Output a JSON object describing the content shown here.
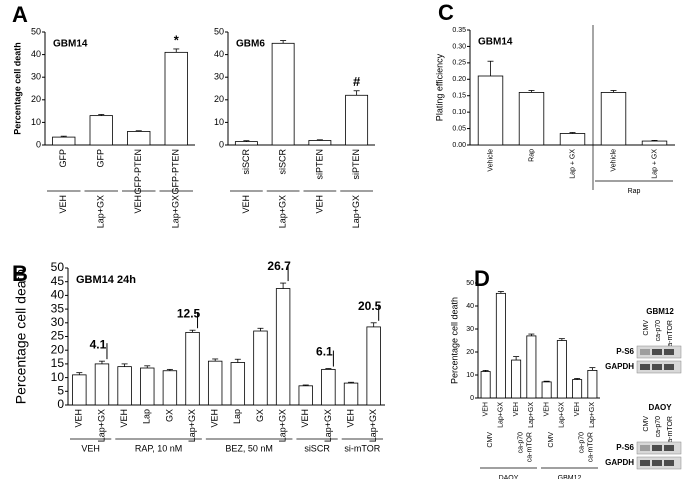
{
  "chart_data": [
    {
      "type": "bar",
      "panel": "A",
      "title": "GBM14",
      "ylabel": "Percentage cell death",
      "color": "#ffffff",
      "categories": [
        "GFP",
        "GFP",
        "GFP-PTEN",
        "GFP-PTEN"
      ],
      "values": [
        3.5,
        13,
        6,
        41
      ],
      "errors": [
        0.4,
        0.5,
        0.3,
        1.5
      ],
      "bar_labels": [
        null,
        null,
        null,
        "*"
      ],
      "groups": [
        [
          "VEH",
          "Lap+GX",
          "VEH",
          "Lap+GX"
        ]
      ],
      "ylim": [
        0,
        50
      ],
      "yticks": [
        0,
        10,
        20,
        30,
        40,
        50
      ]
    },
    {
      "type": "bar",
      "title": "GBM6",
      "color": "#ffffff",
      "categories": [
        "siSCR",
        "siSCR",
        "siPTEN",
        "siPTEN"
      ],
      "values": [
        1.5,
        45,
        2,
        22
      ],
      "errors": [
        0.4,
        1.2,
        0.3,
        2
      ],
      "bar_labels": [
        null,
        null,
        null,
        "#"
      ],
      "groups": [
        [
          "VEH",
          "Lap+GX",
          "VEH",
          "Lap+GX"
        ]
      ],
      "ylim": [
        0,
        50
      ],
      "yticks": [
        0,
        10,
        20,
        30,
        40,
        50
      ]
    },
    {
      "type": "bar",
      "panel": "C",
      "title": "GBM14",
      "ylabel": "Plating efficiency",
      "color": "#ffffff",
      "categories": [
        "Vehicle",
        "Rap",
        "Lap + GX",
        "Vehicle",
        "Lap + GX"
      ],
      "values": [
        0.21,
        0.16,
        0.035,
        0.16,
        0.012
      ],
      "errors": [
        0.045,
        0.006,
        0.003,
        0.006,
        0.002
      ],
      "groups": [
        [
          null,
          null,
          null,
          "Rap",
          "Rap"
        ]
      ],
      "ylim": [
        0,
        0.35
      ],
      "yticks": [
        {
          "value": 0,
          "label": "0.00"
        },
        {
          "value": 0.05,
          "label": "0.05"
        },
        {
          "value": 0.1,
          "label": "0.10"
        },
        {
          "value": 0.15,
          "label": "0.15"
        },
        {
          "value": 0.2,
          "label": "0.20"
        },
        {
          "value": 0.25,
          "label": "0.25"
        },
        {
          "value": 0.3,
          "label": "0.30"
        },
        {
          "value": 0.35,
          "label": "0.35"
        }
      ]
    },
    {
      "type": "bar",
      "panel": "B",
      "title": "GBM14 24h",
      "ylabel": "Percentage cell death",
      "color": "#ffffff",
      "categories": [
        "VEH",
        "Lap+GX",
        "VEH",
        "Lap",
        "GX",
        "Lap+GX",
        "VEH",
        "Lap",
        "GX",
        "Lap+GX",
        "VEH",
        "Lap+GX",
        "VEH",
        "Lap+GX"
      ],
      "values": [
        11,
        15,
        14,
        13.5,
        12.5,
        26.5,
        16,
        15.5,
        27,
        42.5,
        7,
        13,
        8,
        28.5
      ],
      "errors": [
        0.8,
        1,
        1,
        0.8,
        0.5,
        0.8,
        0.8,
        1.2,
        1,
        2,
        0.3,
        0.3,
        0.3,
        1.5
      ],
      "bar_labels": [
        null,
        "4.1",
        null,
        null,
        null,
        "12.5",
        null,
        null,
        null,
        "26.7",
        null,
        "6.1",
        null,
        "20.5"
      ],
      "groups": [
        [
          "VEH",
          "VEH",
          "RAP, 10 nM",
          "RAP, 10 nM",
          "RAP, 10 nM",
          "RAP, 10 nM",
          "BEZ, 50 nM",
          "BEZ, 50 nM",
          "BEZ, 50 nM",
          "BEZ, 50 nM",
          "siSCR",
          "siSCR",
          "si-mTOR",
          "si-mTOR"
        ]
      ],
      "ylim": [
        0,
        50
      ],
      "yticks": [
        0,
        5,
        10,
        15,
        20,
        25,
        30,
        35,
        40,
        45,
        50
      ]
    },
    {
      "type": "bar",
      "panel": "D",
      "ylabel": "Percentage cell death",
      "color": "#ffffff",
      "categories": [
        "VEH",
        "Lap+GX",
        "VEH",
        "Lap+GX",
        "VEH",
        "Lap+GX",
        "VEH",
        "Lap+GX"
      ],
      "values": [
        11.5,
        45.5,
        16.5,
        27,
        7,
        25,
        8,
        12
      ],
      "errors": [
        0.5,
        0.8,
        1.5,
        0.8,
        0.3,
        0.8,
        0.5,
        1.2
      ],
      "groups": [
        [
          "CMV",
          "CMV",
          "ca-p70",
          "ca-p70",
          "CMV",
          "CMV",
          "ca-p70",
          "ca-p70"
        ],
        [
          null,
          null,
          "ca-mTOR",
          "ca-mTOR",
          null,
          null,
          "ca-mTOR",
          "ca-mTOR"
        ],
        [
          "DAOY",
          "DAOY",
          "DAOY",
          "DAOY",
          "GBM12",
          "GBM12",
          "GBM12",
          "GBM12"
        ]
      ],
      "ylim": [
        0,
        50
      ],
      "yticks": [
        0,
        10,
        20,
        30,
        40,
        50
      ]
    }
  ],
  "blots": [
    {
      "title": "GBM12",
      "lanes": [
        "CMV",
        "ca-p70",
        "ca-mTOR"
      ],
      "rows": [
        "P-S6",
        "GAPDH"
      ]
    },
    {
      "title": "DAOY",
      "lanes": [
        "CMV",
        "ca-p70",
        "ca-mTOR"
      ],
      "rows": [
        "P-S6",
        "GAPDH"
      ]
    }
  ]
}
